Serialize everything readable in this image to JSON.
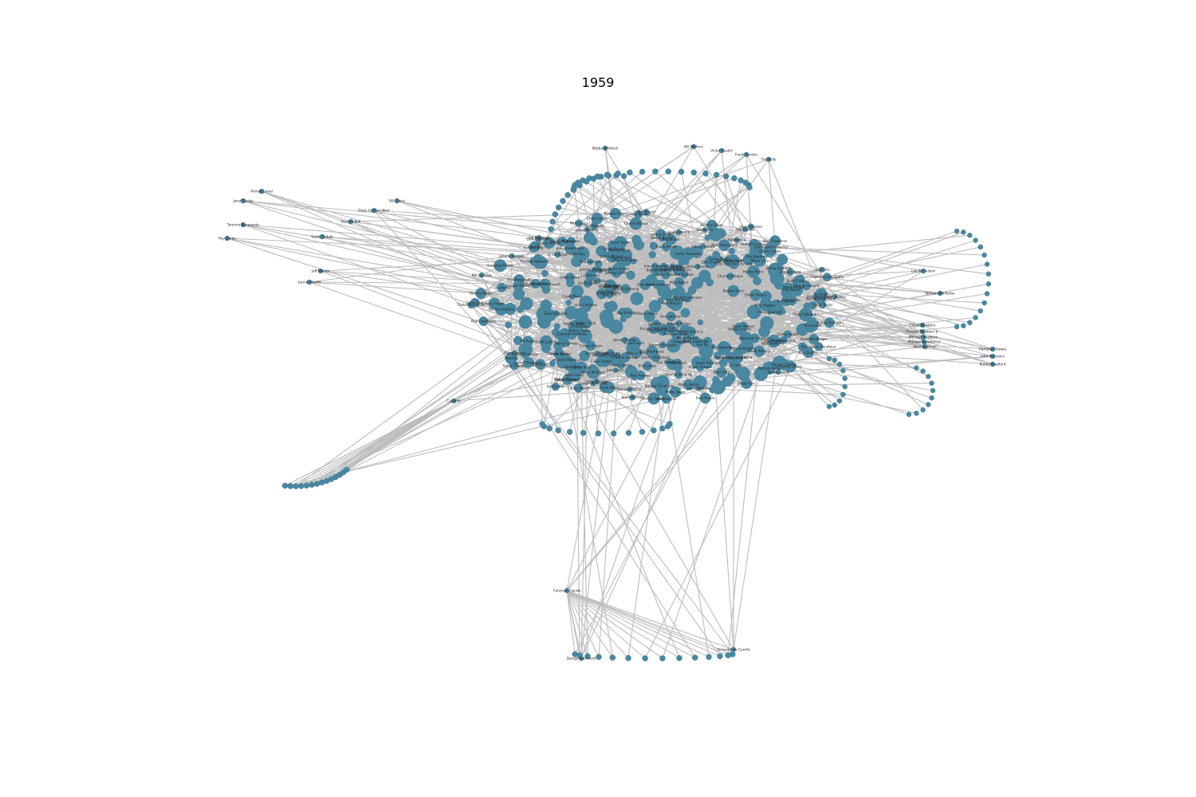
{
  "title": "1959",
  "colors": {
    "node": "#4a88a2",
    "edge": "#bdbdbd",
    "label": "#222222",
    "background": "#ffffff"
  },
  "nodes": [
    {
      "id": "bobby_whitlock",
      "label": "Bobby Whitlock"
    },
    {
      "id": "bill_withers",
      "label": "Bill Withers"
    },
    {
      "id": "victor_gaskill",
      "label": "Victor Gaskill"
    },
    {
      "id": "frank_gordon",
      "label": "Frank Gordon"
    },
    {
      "id": "tim_kelly",
      "label": "Tim Kelly"
    },
    {
      "id": "ahmad_jamal",
      "label": "Ahmad Jamal"
    },
    {
      "id": "jared_ousby",
      "label": "Jared Ousby"
    },
    {
      "id": "tommie_benavente",
      "label": "Tommie Benavente"
    },
    {
      "id": "ray_darby",
      "label": "Ray Darby"
    },
    {
      "id": "jeff_moody",
      "label": "Jeff Moody"
    },
    {
      "id": "lonnie_hewitt",
      "label": "Lonnie Hewitt"
    },
    {
      "id": "dizzy_gillespie",
      "label": "Dizzy Gillespie"
    },
    {
      "id": "dizzy_gordon_west",
      "label": "Dizzy Gordon West"
    },
    {
      "id": "bill_crack",
      "label": "Bill Crack"
    },
    {
      "id": "gordon_bell",
      "label": "Gordon Bell"
    },
    {
      "id": "sahib_shihab",
      "label": "Sahib Shihab"
    },
    {
      "id": "nelson_hopkins",
      "label": "Nelson Hopkins"
    },
    {
      "id": "dizzy_ivan",
      "label": "Dizzy Ivan"
    },
    {
      "id": "oliver_nelson",
      "label": "Oliver Nelson"
    },
    {
      "id": "vernell_fournier",
      "label": "Vernell Fournier"
    },
    {
      "id": "julius_watkins",
      "label": "Julius Watkins"
    },
    {
      "id": "charlie_chuck",
      "label": "Charlie Chuck"
    },
    {
      "id": "lucky_thompson",
      "label": "Lucky Thompson"
    },
    {
      "id": "jerome_richardson",
      "label": "Jerome Richardson"
    },
    {
      "id": "kenny_dorham",
      "label": "Kenny Dorham"
    },
    {
      "id": "james_moody",
      "label": "James Moody"
    },
    {
      "id": "cedar_walton",
      "label": "Cedar Walton"
    },
    {
      "id": "edward_brown",
      "label": "Edward Brown"
    },
    {
      "id": "chuck_lewis",
      "label": "Chuck Lewis"
    },
    {
      "id": "tom_pierson",
      "label": "Tom Pierson"
    },
    {
      "id": "henry_grimes",
      "label": "Henry Grimes"
    },
    {
      "id": "louis_hayes",
      "label": "Louis Hayes"
    },
    {
      "id": "cannonball_adderley",
      "label": "Cannonball Adderley"
    },
    {
      "id": "art_blakey",
      "label": "Art Blakey"
    },
    {
      "id": "john_coltrane",
      "label": "John Coltrane"
    },
    {
      "id": "miles_davis",
      "label": "Miles Davis"
    },
    {
      "id": "wes_montgomery",
      "label": "Wes Montgomery"
    },
    {
      "id": "bill_evans",
      "label": "Bill Evans"
    },
    {
      "id": "paul_chambers",
      "label": "Paul Chambers"
    },
    {
      "id": "philly_joe_jones",
      "label": "Philly Joe Jones"
    },
    {
      "id": "sonny_rollins",
      "label": "Sonny Rollins"
    },
    {
      "id": "horace_silver",
      "label": "Horace Silver"
    },
    {
      "id": "lee_morgan",
      "label": "Lee Morgan"
    },
    {
      "id": "charles_mingus",
      "label": "Charles Mingus"
    },
    {
      "id": "eric_dolphy",
      "label": "Eric Dolphy"
    },
    {
      "id": "max_roach",
      "label": "Max Roach"
    },
    {
      "id": "thelonious_monk",
      "label": "Thelonious Monk"
    },
    {
      "id": "roy_haynes",
      "label": "Roy Haynes"
    },
    {
      "id": "jimmy_cobb",
      "label": "Jimmy Cobb"
    },
    {
      "id": "red_garland",
      "label": "Red Garland"
    },
    {
      "id": "ray_copeland",
      "label": "Ray Copeland"
    },
    {
      "id": "ron_carter",
      "label": "Ron Carter"
    },
    {
      "id": "herbie_mann",
      "label": "Herbie Mann"
    },
    {
      "id": "yusef_lateef",
      "label": "Yusef Lateef"
    },
    {
      "id": "curtis_fuller",
      "label": "Curtis Fuller"
    },
    {
      "id": "benny_golson",
      "label": "Benny Golson"
    },
    {
      "id": "freddie_hubbard",
      "label": "Freddie Hubbard"
    },
    {
      "id": "art_farmer",
      "label": "Art Farmer"
    },
    {
      "id": "jimmy_heath",
      "label": "Jimmy Heath"
    },
    {
      "id": "percy_heath",
      "label": "Percy Heath"
    },
    {
      "id": "milt_jackson",
      "label": "Milt Jackson"
    },
    {
      "id": "john_lewis",
      "label": "John Lewis"
    },
    {
      "id": "connie_kay",
      "label": "Connie Kay"
    },
    {
      "id": "frank_wess",
      "label": "Frank Wess"
    },
    {
      "id": "joe_newman",
      "label": "Joe Newman"
    },
    {
      "id": "thad_jones",
      "label": "Thad Jones"
    },
    {
      "id": "frank_foster",
      "label": "Frank Foster"
    },
    {
      "id": "eddie_davis",
      "label": "Eddie Davis"
    },
    {
      "id": "george_duvivier",
      "label": "George Duvivier"
    },
    {
      "id": "johnny_griffin",
      "label": "Johnny Griffin"
    },
    {
      "id": "hank_jones",
      "label": "Hank Jones"
    },
    {
      "id": "wynton_kelly",
      "label": "Wynton Kelly"
    },
    {
      "id": "sam_jones",
      "label": "Sam Jones"
    },
    {
      "id": "barry_harris",
      "label": "Barry Harris"
    },
    {
      "id": "duke_jordan",
      "label": "Duke Jordan"
    },
    {
      "id": "zoot_sims",
      "label": "Zoot Sims"
    },
    {
      "id": "al_cohn",
      "label": "Al Cohn"
    },
    {
      "id": "gerry_mulligan",
      "label": "Gerry Mulligan"
    },
    {
      "id": "chet_baker",
      "label": "Chet Baker"
    },
    {
      "id": "stan_getz",
      "label": "Stan Getz"
    },
    {
      "id": "lee_konitz",
      "label": "Lee Konitz"
    },
    {
      "id": "bob_brookmeyer",
      "label": "Bob Brookmeyer"
    },
    {
      "id": "jim_hall",
      "label": "Jim Hall"
    },
    {
      "id": "jimmy_giuffre",
      "label": "Jimmy Giuffre"
    },
    {
      "id": "shelly_manne",
      "label": "Shelly Manne"
    },
    {
      "id": "art_pepper",
      "label": "Art Pepper"
    },
    {
      "id": "hampton_hawes",
      "label": "Hampton Hawes"
    },
    {
      "id": "red_mitchell",
      "label": "Red Mitchell"
    },
    {
      "id": "leroy_vinnegar",
      "label": "Leroy Vinnegar"
    },
    {
      "id": "calvin_hughes",
      "label": "Calvin Hughes"
    },
    {
      "id": "lily_strickland",
      "label": "Lily Strickland"
    },
    {
      "id": "julian_priester",
      "label": "Julian Priester"
    },
    {
      "id": "donald_byrd",
      "label": "Donald Byrd"
    },
    {
      "id": "pepper_adams",
      "label": "Pepper Adams"
    },
    {
      "id": "tommy_flanagan",
      "label": "Tommy Flanagan"
    },
    {
      "id": "kenny_burrell",
      "label": "Kenny Burrell"
    },
    {
      "id": "jimmy_smith",
      "label": "Jimmy Smith"
    },
    {
      "id": "lou_donaldson",
      "label": "Lou Donaldson"
    },
    {
      "id": "blue_mitchell",
      "label": "Blue Mitchell"
    },
    {
      "id": "junior_cook",
      "label": "Junior Cook"
    },
    {
      "id": "gene_taylor",
      "label": "Gene Taylor"
    },
    {
      "id": "dizzy_reece",
      "label": "Dizzy Reece"
    },
    {
      "id": "hank_mobley",
      "label": "Hank Mobley"
    },
    {
      "id": "sonny_clark",
      "label": "Sonny Clark"
    },
    {
      "id": "jackie_mclean",
      "label": "Jackie McLean"
    },
    {
      "id": "walter_bishop",
      "label": "Walter Bishop Jr."
    },
    {
      "id": "pete_la_roca",
      "label": "Pete La Roca"
    },
    {
      "id": "teddy_charles",
      "label": "Teddy Charles"
    },
    {
      "id": "mal_waldron",
      "label": "Mal Waldron"
    },
    {
      "id": "bud_powell",
      "label": "Bud Powell"
    },
    {
      "id": "ornette_coleman",
      "label": "Ornette Coleman"
    },
    {
      "id": "don_cherry",
      "label": "Don Cherry"
    },
    {
      "id": "charlie_haden",
      "label": "Charlie Haden"
    },
    {
      "id": "billy_higgins",
      "label": "Billy Higgins"
    },
    {
      "id": "ed_blackwell",
      "label": "Ed Blackwell"
    },
    {
      "id": "scott_lafaro",
      "label": "Scott LaFaro"
    },
    {
      "id": "paul_motian",
      "label": "Paul Motian"
    },
    {
      "id": "steve_lacy",
      "label": "Steve Lacy"
    },
    {
      "id": "cecil_taylor",
      "label": "Cecil Taylor"
    },
    {
      "id": "buell_neidlinger",
      "label": "Buell Neidlinger"
    },
    {
      "id": "dennis_charles",
      "label": "Dennis Charles"
    },
    {
      "id": "sun_ra",
      "label": "Sun Ra"
    },
    {
      "id": "john_gilmore",
      "label": "John Gilmore"
    },
    {
      "id": "pat_patrick",
      "label": "Pat Patrick"
    },
    {
      "id": "ronnie_boykins",
      "label": "Ronnie Boykins"
    },
    {
      "id": "booker_little",
      "label": "Booker Little"
    },
    {
      "id": "abbey_lincoln",
      "label": "Abbey Lincoln"
    },
    {
      "id": "coleman_hawkins",
      "label": "Coleman Hawkins"
    },
    {
      "id": "ben_webster",
      "label": "Ben Webster"
    },
    {
      "id": "roy_eldridge",
      "label": "Roy Eldridge"
    },
    {
      "id": "oscar_peterson",
      "label": "Oscar Peterson"
    },
    {
      "id": "ray_brown",
      "label": "Ray Brown"
    },
    {
      "id": "herb_ellis",
      "label": "Herb Ellis"
    },
    {
      "id": "ed_thigpen",
      "label": "Ed Thigpen"
    },
    {
      "id": "ella_fitzgerald",
      "label": "Ella Fitzgerald"
    },
    {
      "id": "count_basie",
      "label": "Count Basie"
    },
    {
      "id": "duke_ellington",
      "label": "Duke Ellington"
    },
    {
      "id": "johnny_hodges",
      "label": "Johnny Hodges"
    },
    {
      "id": "harry_carney",
      "label": "Harry Carney"
    },
    {
      "id": "clark_terry",
      "label": "Clark Terry"
    },
    {
      "id": "paul_gonsalves",
      "label": "Paul Gonsalves"
    },
    {
      "id": "jimmy_hamilton",
      "label": "Jimmy Hamilton"
    },
    {
      "id": "ray_nance",
      "label": "Ray Nance"
    },
    {
      "id": "sam_woodyard",
      "label": "Sam Woodyard"
    },
    {
      "id": "jimmy_woode",
      "label": "Jimmy Woode"
    },
    {
      "id": "billy_strayhorn",
      "label": "Billy Strayhorn"
    },
    {
      "id": "quincy_jones",
      "label": "Quincy Jones"
    },
    {
      "id": "gil_evans",
      "label": "Gil Evans"
    },
    {
      "id": "george_russell",
      "label": "George Russell"
    },
    {
      "id": "bill_russo",
      "label": "Bill Russo"
    },
    {
      "id": "stan_kenton",
      "label": "Stan Kenton"
    },
    {
      "id": "maynard_ferguson",
      "label": "Maynard Ferguson"
    },
    {
      "id": "woody_herman",
      "label": "Woody Herman"
    },
    {
      "id": "buddy_rich",
      "label": "Buddy Rich"
    },
    {
      "id": "gene_krupa",
      "label": "Gene Krupa"
    },
    {
      "id": "jo_jones",
      "label": "Jo Jones"
    },
    {
      "id": "osie_johnson",
      "label": "Osie Johnson"
    },
    {
      "id": "milt_hinton",
      "label": "Milt Hinton"
    },
    {
      "id": "barry_galbraith",
      "label": "Barry Galbraith"
    },
    {
      "id": "doc_severinsen",
      "label": "Doc Severinsen"
    },
    {
      "id": "urbie_green",
      "label": "Urbie Green"
    },
    {
      "id": "jimmy_cleveland",
      "label": "Jimmy Cleveland"
    },
    {
      "id": "j_j_johnson",
      "label": "J.J. Johnson"
    },
    {
      "id": "kai_winding",
      "label": "Kai Winding"
    },
    {
      "id": "bennie_green",
      "label": "Bennie Green"
    },
    {
      "id": "willie_dennis",
      "label": "Willie Dennis"
    },
    {
      "id": "jimmy_knepper",
      "label": "Jimmy Knepper"
    },
    {
      "id": "booker_ervin",
      "label": "Booker Ervin"
    },
    {
      "id": "dannie_richmond",
      "label": "Dannie Richmond"
    },
    {
      "id": "horace_parlan",
      "label": "Horace Parlan"
    },
    {
      "id": "roland_hanna",
      "label": "Roland Hanna"
    },
    {
      "id": "lloyd_trotman",
      "label": "Lloyd Trotman"
    },
    {
      "id": "wendell_marshall",
      "label": "Wendell Marshall"
    },
    {
      "id": "tommy_potter",
      "label": "Tommy Potter"
    },
    {
      "id": "walter_davis",
      "label": "Walter Davis Jr."
    },
    {
      "id": "art_taylor",
      "label": "Art Taylor"
    },
    {
      "id": "doug_watkins",
      "label": "Doug Watkins"
    },
    {
      "id": "kenny_clarke",
      "label": "Kenny Clarke"
    },
    {
      "id": "lex_humphries",
      "label": "Lex Humphries"
    },
    {
      "id": "charli_persip",
      "label": "Charli Persip"
    },
    {
      "id": "elvin_jones",
      "label": "Elvin Jones"
    },
    {
      "id": "tommy_turrentine",
      "label": "Tommy Turrentine"
    },
    {
      "id": "stanley_turrentine",
      "label": "Stanley Turrentine"
    },
    {
      "id": "shirley_scott",
      "label": "Shirley Scott"
    },
    {
      "id": "richard_williams",
      "label": "Richard Williams"
    },
    {
      "id": "edwin_rivera",
      "label": "Edwin Rivera"
    },
    {
      "id": "frank_rehak",
      "label": "Frank Rehak"
    },
    {
      "id": "ernie_royal",
      "label": "Ernie Royal"
    },
    {
      "id": "bernie_glow",
      "label": "Bernie Glow"
    },
    {
      "id": "eddie_bert",
      "label": "Eddie Bert"
    },
    {
      "id": "joe_wilder",
      "label": "Joe Wilder"
    },
    {
      "id": "frankie_dunlop",
      "label": "Frankie Dunlop"
    },
    {
      "id": "john_ore",
      "label": "John Ore"
    },
    {
      "id": "charlie_rouse",
      "label": "Charlie Rouse"
    },
    {
      "id": "mongo_santamaria",
      "label": "Mongo Santamaria"
    },
    {
      "id": "willie_bobo",
      "label": "Willie Bobo"
    },
    {
      "id": "cal_tjader",
      "label": "Cal Tjader"
    },
    {
      "id": "vince_guaraldi",
      "label": "Vince Guaraldi"
    },
    {
      "id": "candido",
      "label": "Candido"
    },
    {
      "id": "tito_puente",
      "label": "Tito Puente"
    },
    {
      "id": "machito",
      "label": "Machito"
    },
    {
      "id": "mario_bauza",
      "label": "Mario Bauza"
    },
    {
      "id": "carlos_patato",
      "label": "Carlos Patato"
    },
    {
      "id": "jose_mangual",
      "label": "Jose Mangual"
    },
    {
      "id": "cha_cha_cha_cha",
      "label": "Cha Cha Cha Cha Cha"
    },
    {
      "id": "eddie_palmieri",
      "label": "Eddie Palmieri"
    },
    {
      "id": "tito_rodriguez",
      "label": "Tito Rodriguez"
    },
    {
      "id": "celia_cruz",
      "label": "Celia Cruz"
    },
    {
      "id": "rudy_calzado",
      "label": "Rudy Calzado"
    },
    {
      "id": "modesto_duran",
      "label": "Modesto Duran"
    },
    {
      "id": "armando_peraza",
      "label": "Armando Peraza"
    },
    {
      "id": "francisco_aguabella",
      "label": "Francisco Aguabella"
    },
    {
      "id": "roberto_roena",
      "label": "Roberto Roena"
    },
    {
      "id": "israel_lopez",
      "label": "Israel Lopez"
    },
    {
      "id": "calvin_newborn",
      "label": "Calvin Newborn"
    },
    {
      "id": "phineas_newborn_jr",
      "label": "Phineas Newborn Jr."
    },
    {
      "id": "phineas_newborn",
      "label": "Phineas Newborn"
    },
    {
      "id": "phineas_newborn_2",
      "label": "Phineas Newborn Jr"
    },
    {
      "id": "noel_marriner",
      "label": "Noel Marriner"
    },
    {
      "id": "hampton_hawes_2",
      "label": "Hampton Hawes"
    },
    {
      "id": "john_simmons",
      "label": "John Simmons"
    },
    {
      "id": "bobby_bradford",
      "label": "Bobby Bradford"
    },
    {
      "id": "jimmy_rowles",
      "label": "Jimmy Rowles"
    },
    {
      "id": "johnny_gadda",
      "label": "Johnny Gadda"
    },
    {
      "id": "zoltan_ancsin",
      "label": "Zoltan Ancsin"
    },
    {
      "id": "ted_dunbar",
      "label": "Ted Dunbar"
    },
    {
      "id": "william_middleton",
      "label": "William Middleton"
    },
    {
      "id": "nick_lasko",
      "label": "Nick Lasko"
    },
    {
      "id": "sam_rivers",
      "label": "Sam Rivers"
    },
    {
      "id": "stan_levey",
      "label": "Stan Levey"
    },
    {
      "id": "dick_alexander",
      "label": "Dick Alexander"
    },
    {
      "id": "django_reinhardt",
      "label": "Django Reinhardt"
    },
    {
      "id": "stephane_grappelli",
      "label": "Stephane Grappelli"
    },
    {
      "id": "joseph_reinhardt",
      "label": "Joseph Reinhardt"
    },
    {
      "id": "pierre_ferret",
      "label": "Pierre Ferret"
    },
    {
      "id": "emmanuel_soudieux",
      "label": "Emmanuel Soudieux"
    },
    {
      "id": "gerard_levecque",
      "label": "Gerard Levecque"
    },
    {
      "id": "hubert_rostaing",
      "label": "Hubert Rostaing"
    },
    {
      "id": "louis_vola",
      "label": "Louis Vola"
    },
    {
      "id": "roger_chaput",
      "label": "Roger Chaput"
    },
    {
      "id": "eugene_vees",
      "label": "Eugene Vees"
    },
    {
      "id": "pierre_fouad",
      "label": "Pierre Fouad"
    },
    {
      "id": "coleman_claude",
      "label": "Coleman Claude"
    },
    {
      "id": "armandinho_camilo",
      "label": "Armandinho Camilo"
    }
  ]
}
